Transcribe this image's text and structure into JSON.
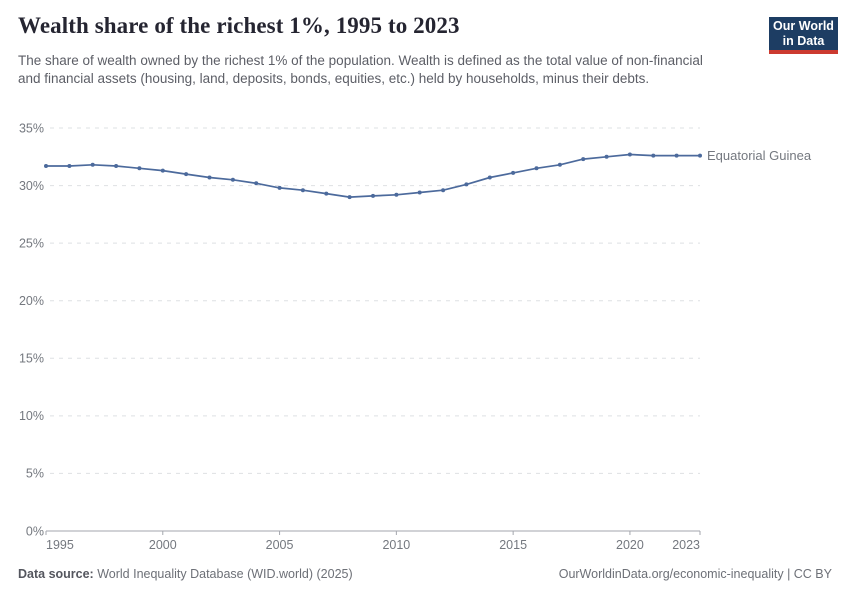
{
  "header": {
    "title": "Wealth share of the richest 1%, 1995 to 2023",
    "subtitle": "The share of wealth owned by the richest 1% of the population. Wealth is defined as the total value of non-financial and financial assets (housing, land, deposits, bonds, equities, etc.) held by households, minus their debts.",
    "logo": {
      "line1": "Our World",
      "line2": "in Data"
    }
  },
  "chart_data": {
    "type": "line",
    "title": "Wealth share of the richest 1%, 1995 to 2023",
    "xlabel": "",
    "ylabel": "",
    "xlim": [
      1995,
      2023
    ],
    "ylim": [
      0,
      35
    ],
    "x_ticks": [
      1995,
      2000,
      2005,
      2010,
      2015,
      2020,
      2023
    ],
    "y_ticks": [
      0,
      5,
      10,
      15,
      20,
      25,
      30,
      35
    ],
    "y_tick_suffix": "%",
    "grid": "horizontal-dashed",
    "legend_position": "right-of-line-end",
    "series": [
      {
        "name": "Equatorial Guinea",
        "color": "#4C6A9C",
        "x": [
          1995,
          1996,
          1997,
          1998,
          1999,
          2000,
          2001,
          2002,
          2003,
          2004,
          2005,
          2006,
          2007,
          2008,
          2009,
          2010,
          2011,
          2012,
          2013,
          2014,
          2015,
          2016,
          2017,
          2018,
          2019,
          2020,
          2021,
          2022,
          2023
        ],
        "values": [
          31.7,
          31.7,
          31.8,
          31.7,
          31.5,
          31.3,
          31.0,
          30.7,
          30.5,
          30.2,
          29.8,
          29.6,
          29.3,
          29.0,
          29.1,
          29.2,
          29.4,
          29.6,
          30.1,
          30.7,
          31.1,
          31.5,
          31.8,
          32.3,
          32.5,
          32.7,
          32.6,
          32.6,
          32.6
        ]
      }
    ]
  },
  "footer": {
    "source_label": "Data source:",
    "source_text": "World Inequality Database (WID.world) (2025)",
    "credit": "OurWorldinData.org/economic-inequality | CC BY"
  },
  "colors": {
    "accent_line": "#4C6A9C",
    "series_label": "#4C6A9C",
    "title": "#252531",
    "subtitle": "#5c5e66",
    "tick_text": "#74787f",
    "gridline": "#dee0e3",
    "axis_line": "#a3a6ad",
    "logo_navy": "#1d3d63",
    "logo_red": "#cc3a30",
    "background": "#ffffff"
  }
}
